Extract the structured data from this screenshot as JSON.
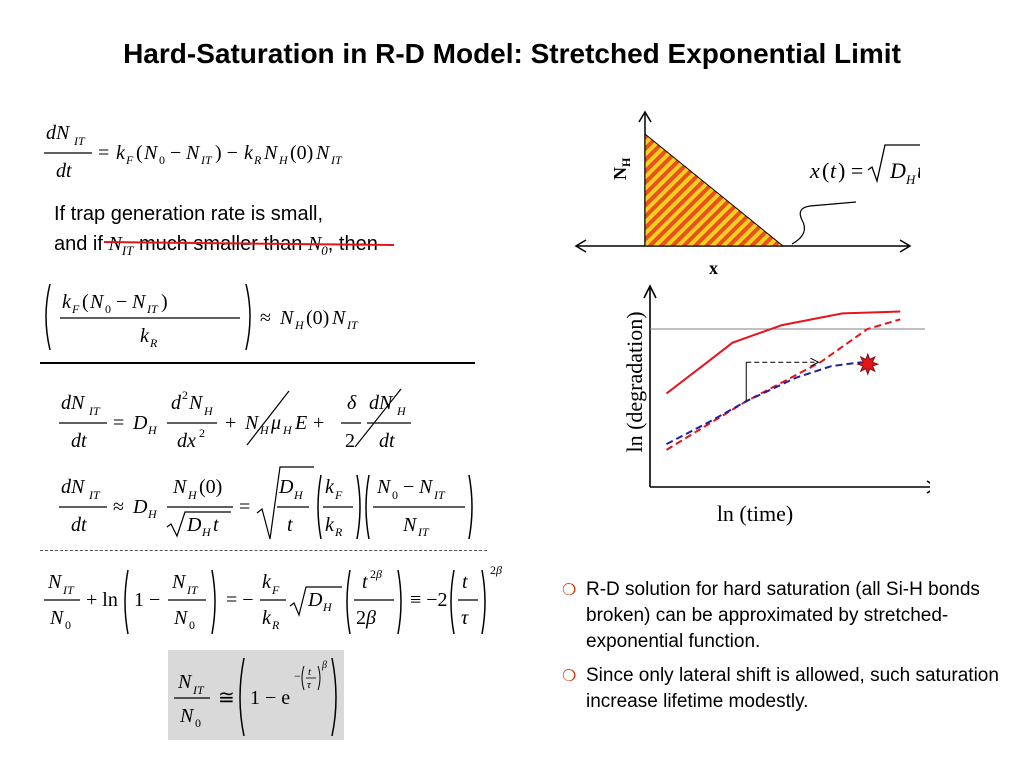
{
  "slide": {
    "title": "Hard-Saturation in R-D Model: Stretched Exponential Limit",
    "condition_line1": "If trap generation rate is small,",
    "condition_line2_a": "and if",
    "condition_line2_var1": "N",
    "condition_line2_sub1": "IT",
    "condition_line2_b": "much smaller than",
    "condition_line2_var2": "N",
    "condition_line2_sub2": "0",
    "condition_line2_c": ", then",
    "bullet_marker": "❍",
    "bullets": [
      "R-D solution for hard saturation (all Si-H bonds broken) can be approximated by stretched-exponential function.",
      "Since only lateral shift is allowed, such saturation increase lifetime modestly."
    ]
  },
  "diagram": {
    "y_axis_label": "N",
    "y_axis_sub": "H",
    "x_axis_label": "x",
    "equation_label": "x(t) = √(D_H t)"
  },
  "chart_data": {
    "type": "line",
    "title": "",
    "xlabel": "ln (time)",
    "ylabel": "ln (degradation)",
    "grid": false,
    "xlim": [
      0,
      10
    ],
    "ylim": [
      0,
      10
    ],
    "saturation_level": 8.1,
    "series": [
      {
        "style": "solid",
        "color": "#e8141c",
        "x": [
          0.6,
          1.9,
          3.0,
          4.8,
          7.0,
          9.1
        ],
        "y": [
          4.8,
          6.2,
          7.4,
          8.3,
          8.9,
          9.0
        ]
      },
      {
        "style": "dashed",
        "color": "#e8141c",
        "x": [
          0.6,
          2.1,
          3.5,
          6.2,
          7.9,
          9.1
        ],
        "y": [
          1.9,
          3.2,
          4.4,
          6.4,
          8.1,
          8.6
        ]
      },
      {
        "style": "dashed",
        "color": "#2020a0",
        "x": [
          0.6,
          2.1,
          3.5,
          5.3,
          6.6,
          7.7
        ],
        "y": [
          2.2,
          3.3,
          4.4,
          5.6,
          6.2,
          6.4
        ]
      }
    ],
    "annotation": {
      "shift_from_x": 3.5,
      "shift_to_x": 6.2,
      "shift_y": 6.4,
      "burst_x": 7.7,
      "burst_y": 6.2,
      "burst_color": "#e8141c"
    }
  }
}
